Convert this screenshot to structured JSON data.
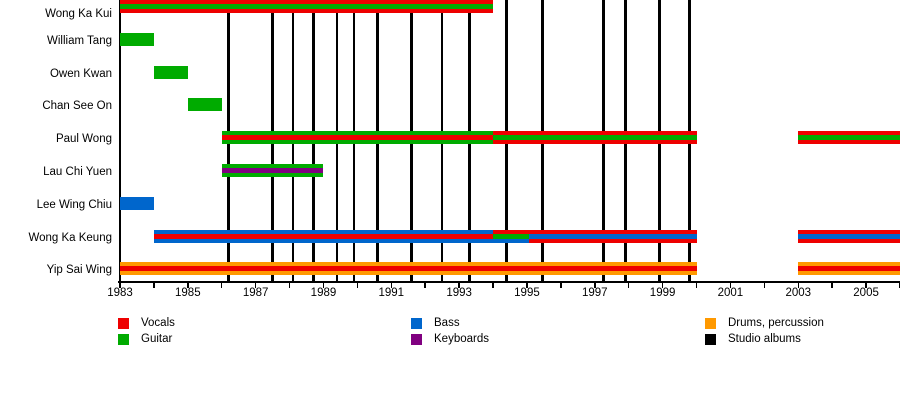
{
  "chart_data": {
    "type": "timeline",
    "description": "Band members timeline (Gantt-style), roles shown as colored bars per member versus years, with vertical black lines marking studio albums.",
    "x_axis": {
      "start": 1983,
      "end": 2006,
      "tick_interval": 1,
      "labeled_ticks": [
        "1983",
        "1985",
        "1987",
        "1989",
        "1991",
        "1993",
        "1995",
        "1997",
        "1999",
        "2001",
        "2003",
        "2005"
      ]
    },
    "colors": {
      "vocals": "#ee0000",
      "guitar": "#00ab00",
      "bass": "#0066cc",
      "keyboards": "#800080",
      "drums": "#ff9900",
      "albums": "#000000"
    },
    "members": [
      {
        "name": "Wong Ka Kui",
        "segments": [
          {
            "start": 1983,
            "end": 1994,
            "primary": "vocals",
            "center": "guitar"
          }
        ]
      },
      {
        "name": "William Tang",
        "segments": [
          {
            "start": 1983,
            "end": 1984,
            "primary": "guitar"
          }
        ]
      },
      {
        "name": "Owen Kwan",
        "segments": [
          {
            "start": 1984,
            "end": 1985,
            "primary": "guitar"
          }
        ]
      },
      {
        "name": "Chan See On",
        "segments": [
          {
            "start": 1985,
            "end": 1986,
            "primary": "guitar"
          }
        ]
      },
      {
        "name": "Paul Wong",
        "segments": [
          {
            "start": 1986,
            "end": 1994,
            "primary": "guitar",
            "center": "vocals"
          },
          {
            "start": 1994,
            "end": 2000,
            "primary": "vocals",
            "center": "guitar"
          },
          {
            "start": 2003,
            "end": 2006,
            "primary": "vocals",
            "center": "guitar"
          }
        ]
      },
      {
        "name": "Lau Chi Yuen",
        "segments": [
          {
            "start": 1986,
            "end": 1989,
            "primary": "guitar",
            "center": "keyboards"
          }
        ]
      },
      {
        "name": "Lee Wing Chiu",
        "segments": [
          {
            "start": 1983,
            "end": 1984,
            "primary": "bass"
          }
        ]
      },
      {
        "name": "Wong Ka Keung",
        "segments": [
          {
            "start": 1984,
            "end": 1994,
            "primary": "bass",
            "center": "vocals"
          },
          {
            "start": 1994,
            "end": 1995.05,
            "primary": "vocals",
            "center": "guitar",
            "bottom": "bass"
          },
          {
            "start": 1995.05,
            "end": 2000,
            "primary": "vocals",
            "center": "bass"
          },
          {
            "start": 2003,
            "end": 2006,
            "primary": "vocals",
            "center": "bass"
          }
        ]
      },
      {
        "name": "Yip Sai Wing",
        "segments": [
          {
            "start": 1983,
            "end": 2000,
            "primary": "drums",
            "center": "vocals"
          },
          {
            "start": 2003,
            "end": 2006,
            "primary": "drums",
            "center": "vocals"
          }
        ]
      }
    ],
    "studio_albums_years": [
      1986.2,
      1987.5,
      1988.1,
      1988.7,
      1989.4,
      1989.9,
      1990.6,
      1991.6,
      1992.5,
      1993.3,
      1994.4,
      1995.45,
      1997.25,
      1997.9,
      1998.9,
      1999.8
    ],
    "legend": {
      "columns": [
        {
          "items": [
            {
              "label": "Vocals",
              "role": "vocals"
            },
            {
              "label": "Guitar",
              "role": "guitar"
            }
          ]
        },
        {
          "items": [
            {
              "label": "Bass",
              "role": "bass"
            },
            {
              "label": "Keyboards",
              "role": "keyboards"
            }
          ]
        },
        {
          "items": [
            {
              "label": "Drums, percussion",
              "role": "drums"
            },
            {
              "label": "Studio albums",
              "role": "albums"
            }
          ]
        }
      ]
    }
  }
}
